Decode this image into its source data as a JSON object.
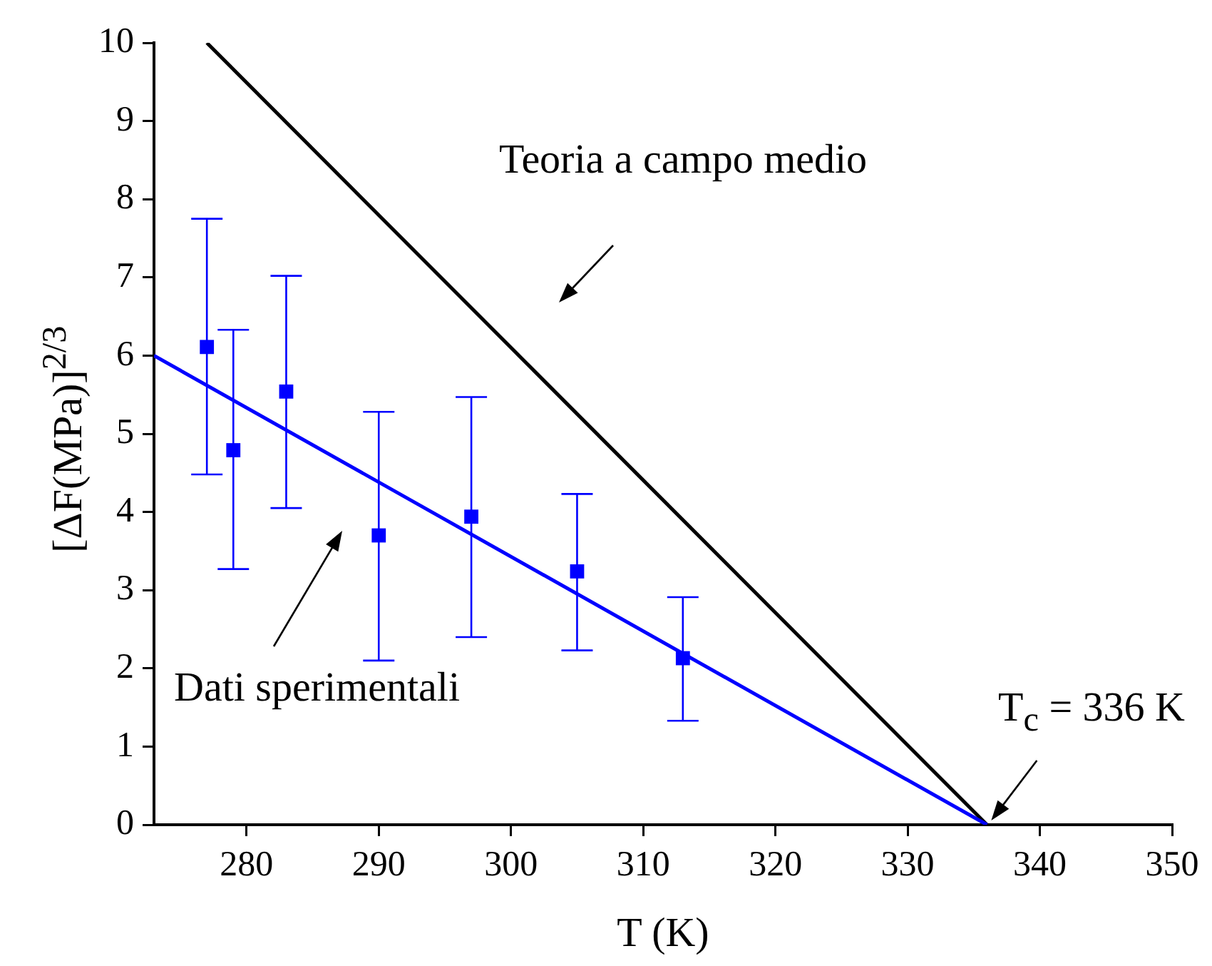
{
  "chart_data": {
    "type": "scatter",
    "xlabel": "T (K)",
    "ylabel": "[ΔF(MPa)]$^{2/3}$",
    "xlim": [
      273,
      350
    ],
    "ylim": [
      0,
      10
    ],
    "xticks": [
      280,
      290,
      300,
      310,
      320,
      330,
      340,
      350
    ],
    "yticks": [
      0,
      1,
      2,
      3,
      4,
      5,
      6,
      7,
      8,
      9,
      10
    ],
    "grid": false,
    "legend": false,
    "marker": "square",
    "series": [
      {
        "type": "scatter",
        "color": "#0000ff",
        "x": [
          277,
          279,
          283,
          290,
          297,
          305,
          313
        ],
        "values": [
          6.11,
          4.79,
          5.54,
          3.7,
          3.94,
          3.24,
          2.13
        ],
        "errors": [
          [
            4.48,
            7.75
          ],
          [
            3.27,
            6.33
          ],
          [
            4.05,
            7.02
          ],
          [
            2.1,
            5.28
          ],
          [
            2.4,
            5.47
          ],
          [
            2.23,
            4.23
          ],
          [
            1.33,
            2.91
          ]
        ]
      },
      {
        "type": "line",
        "color": "#0000ff",
        "x": [
          273,
          336
        ],
        "values": [
          6.0,
          0
        ],
        "marker": "none"
      },
      {
        "type": "line",
        "color": "#000000",
        "x": [
          277,
          336
        ],
        "values": [
          10,
          0
        ],
        "marker": "none"
      }
    ],
    "annotations": [
      "Teoria a campo medio",
      "Dati sperimentali",
      {
        "text": "T$_{c}$ = 336 K",
        "x": 336,
        "y": 0
      }
    ]
  }
}
